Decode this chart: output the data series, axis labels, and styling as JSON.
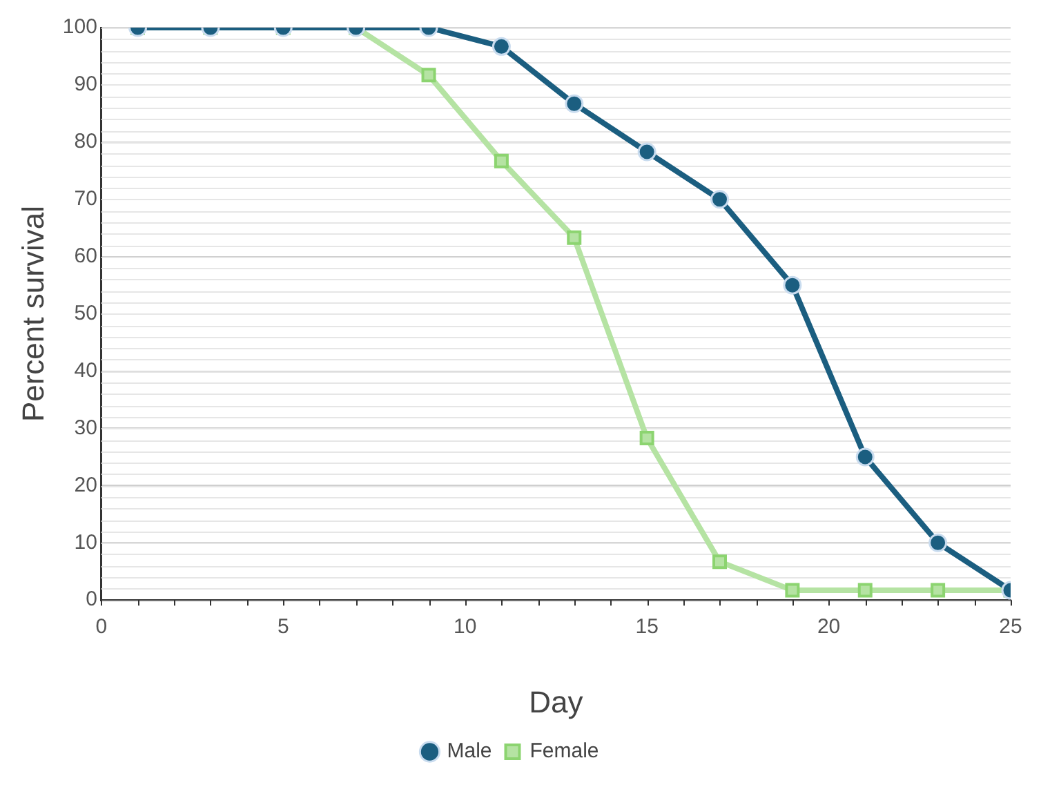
{
  "chart_data": {
    "type": "line",
    "xlabel": "Day",
    "ylabel": "Percent survival",
    "x": [
      1,
      3,
      5,
      7,
      9,
      11,
      13,
      15,
      17,
      19,
      21,
      23,
      25
    ],
    "series": [
      {
        "name": "Male",
        "color": "#1b5e80",
        "marker": "circle",
        "values": [
          100,
          100,
          100,
          100,
          100,
          96.7,
          86.7,
          78.3,
          70,
          55,
          25,
          10,
          1.7
        ]
      },
      {
        "name": "Female",
        "color": "#b5e3a3",
        "marker": "square",
        "values": [
          100,
          100,
          100,
          100,
          91.7,
          76.7,
          63.3,
          28.3,
          6.7,
          1.7,
          1.7,
          1.7,
          1.7
        ]
      }
    ],
    "xlim": [
      0,
      25
    ],
    "xticks": [
      0,
      5,
      10,
      15,
      20,
      25
    ],
    "ylim": [
      0,
      100
    ],
    "yticks": [
      0,
      10,
      20,
      30,
      40,
      50,
      60,
      70,
      80,
      90,
      100
    ],
    "grid": "y",
    "legend": "bottom",
    "line_style": "solid"
  }
}
